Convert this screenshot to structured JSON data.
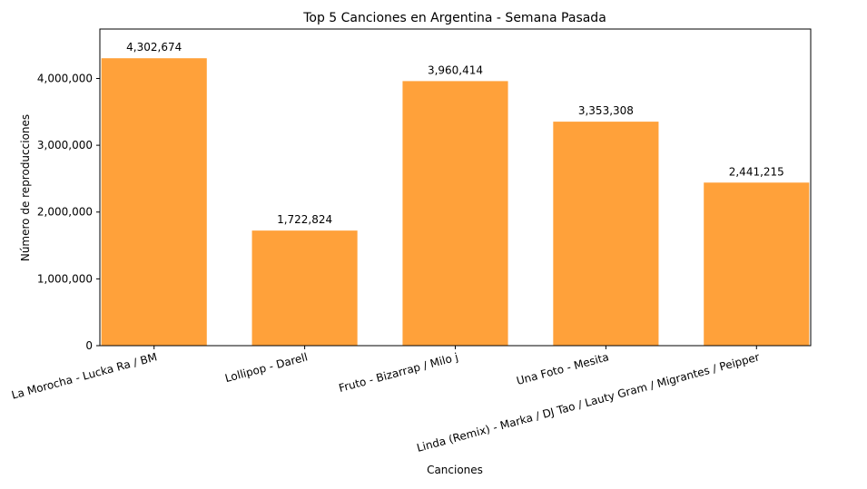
{
  "chart_data": {
    "type": "bar",
    "title": "Top 5 Canciones en Argentina - Semana Pasada",
    "xlabel": "Canciones",
    "ylabel": "Número de reproducciones",
    "categories": [
      "La Morocha - Lucka Ra / BM",
      "Lollipop - Darell",
      "Fruto - Bizarrap / Milo j",
      "Una Foto - Mesita",
      "Linda (Remix) - Marka / DJ Tao / Lauty Gram / Migrantes / Peipper"
    ],
    "values": [
      4302674,
      1722824,
      3960414,
      3353308,
      2441215
    ],
    "data_labels": [
      "4,302,674",
      "1,722,824",
      "3,960,414",
      "3,353,308",
      "2,441,215"
    ],
    "yticks": [
      0,
      1000000,
      2000000,
      3000000,
      4000000
    ],
    "ytick_labels": [
      "0",
      "1,000,000",
      "2,000,000",
      "3,000,000",
      "4,000,000"
    ],
    "ylim": [
      0,
      4740000
    ],
    "grid": false,
    "bar_color": "#ffa13a"
  }
}
